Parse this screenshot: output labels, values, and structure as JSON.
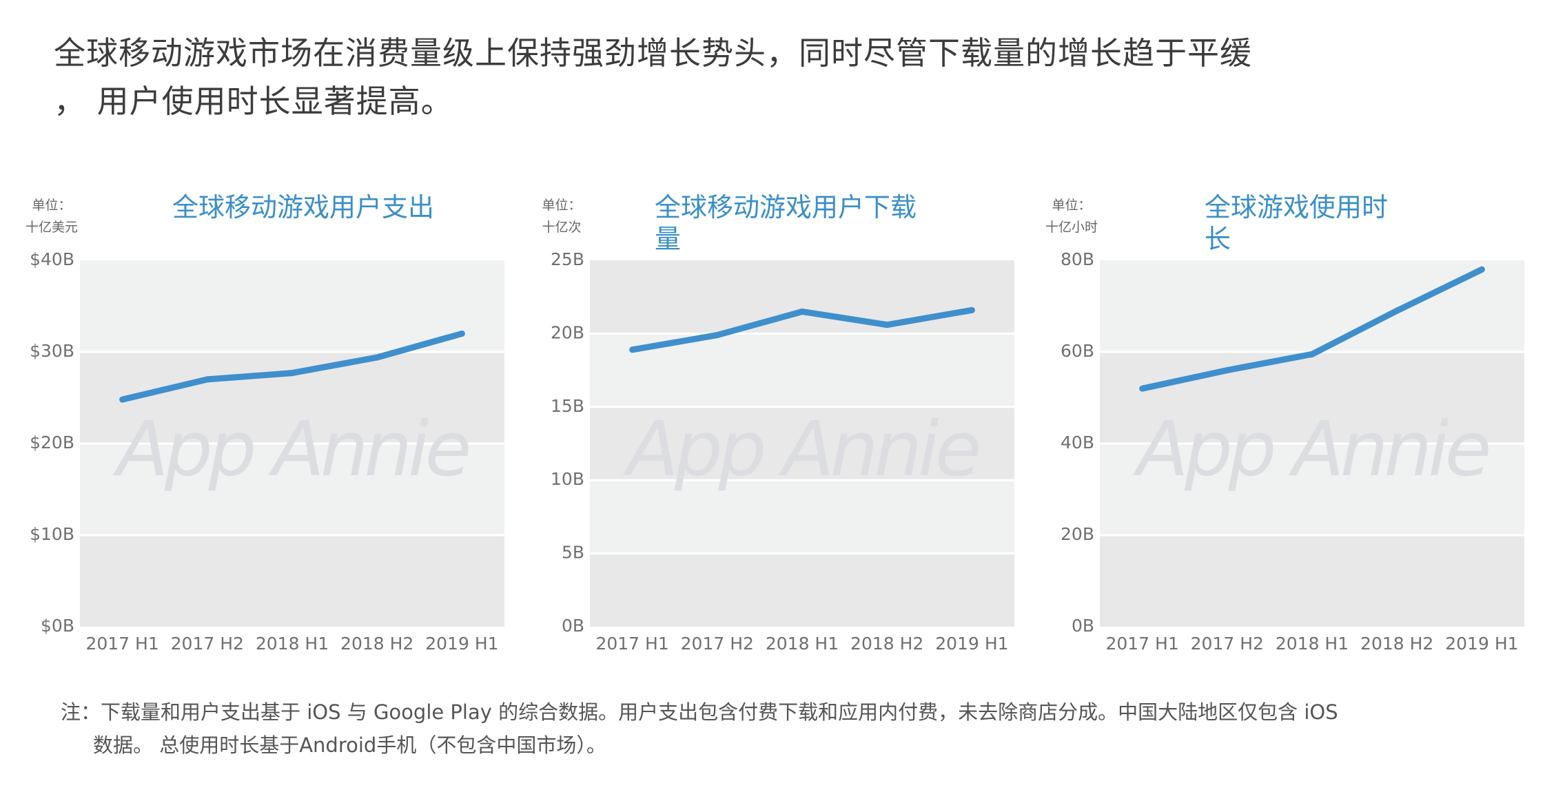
{
  "headline": {
    "line1": "全球移动游戏市场在消费量级上保持强劲增长势头，同时尽管下载量的增长趋于平缓",
    "line2": "，  用户使用时长显著提高。"
  },
  "watermark": "App Annie",
  "colors": {
    "line": "#3f8fcc",
    "title": "#3a8fc8",
    "band_dark": "#e8e8e9",
    "band_light": "#f0f1f1"
  },
  "panels": [
    {
      "unit_line1": "单位：",
      "unit_line2": "十亿美元",
      "title": "全球移动游戏用户支出"
    },
    {
      "unit_line1": "单位：",
      "unit_line2": "十亿次",
      "title": "全球移动游戏用户下载量"
    },
    {
      "unit_line1": "单位：",
      "unit_line2": "十亿小时",
      "title": "全球游戏使用时长"
    }
  ],
  "chart_data": [
    {
      "type": "line",
      "title": "全球移动游戏用户支出",
      "ylabel": "单位：十亿美元",
      "categories": [
        "2017 H1",
        "2017 H2",
        "2018 H1",
        "2018 H2",
        "2019 H1"
      ],
      "values": [
        24.8,
        27.0,
        27.7,
        29.4,
        32.0
      ],
      "ylim": [
        0,
        40
      ],
      "yticks": [
        0,
        10,
        20,
        30,
        40
      ],
      "ytick_labels": [
        "$0B",
        "$10B",
        "$20B",
        "$30B",
        "$40B"
      ]
    },
    {
      "type": "line",
      "title": "全球移动游戏用户下载量",
      "ylabel": "单位：十亿次",
      "categories": [
        "2017 H1",
        "2017 H2",
        "2018 H1",
        "2018 H2",
        "2019 H1"
      ],
      "values": [
        18.9,
        19.9,
        21.5,
        20.6,
        21.6
      ],
      "ylim": [
        0,
        25
      ],
      "yticks": [
        0,
        5,
        10,
        15,
        20,
        25
      ],
      "ytick_labels": [
        "0B",
        "5B",
        "10B",
        "15B",
        "20B",
        "25B"
      ]
    },
    {
      "type": "line",
      "title": "全球游戏使用时长",
      "ylabel": "单位：十亿小时",
      "categories": [
        "2017 H1",
        "2017 H2",
        "2018 H1",
        "2018 H2",
        "2019 H1"
      ],
      "values": [
        52,
        56,
        59.5,
        69,
        78
      ],
      "ylim": [
        0,
        80
      ],
      "yticks": [
        0,
        20,
        40,
        60,
        80
      ],
      "ytick_labels": [
        "0B",
        "20B",
        "40B",
        "60B",
        "80B"
      ]
    }
  ],
  "note": {
    "line1": "注：下载量和用户支出基于 iOS 与 Google Play 的综合数据。用户支出包含付费下载和应用内付费，未去除商店分成。中国大陆地区仅包含 iOS",
    "line2": "数据。 总使用时长基于Android手机（不包含中国市场）。"
  }
}
